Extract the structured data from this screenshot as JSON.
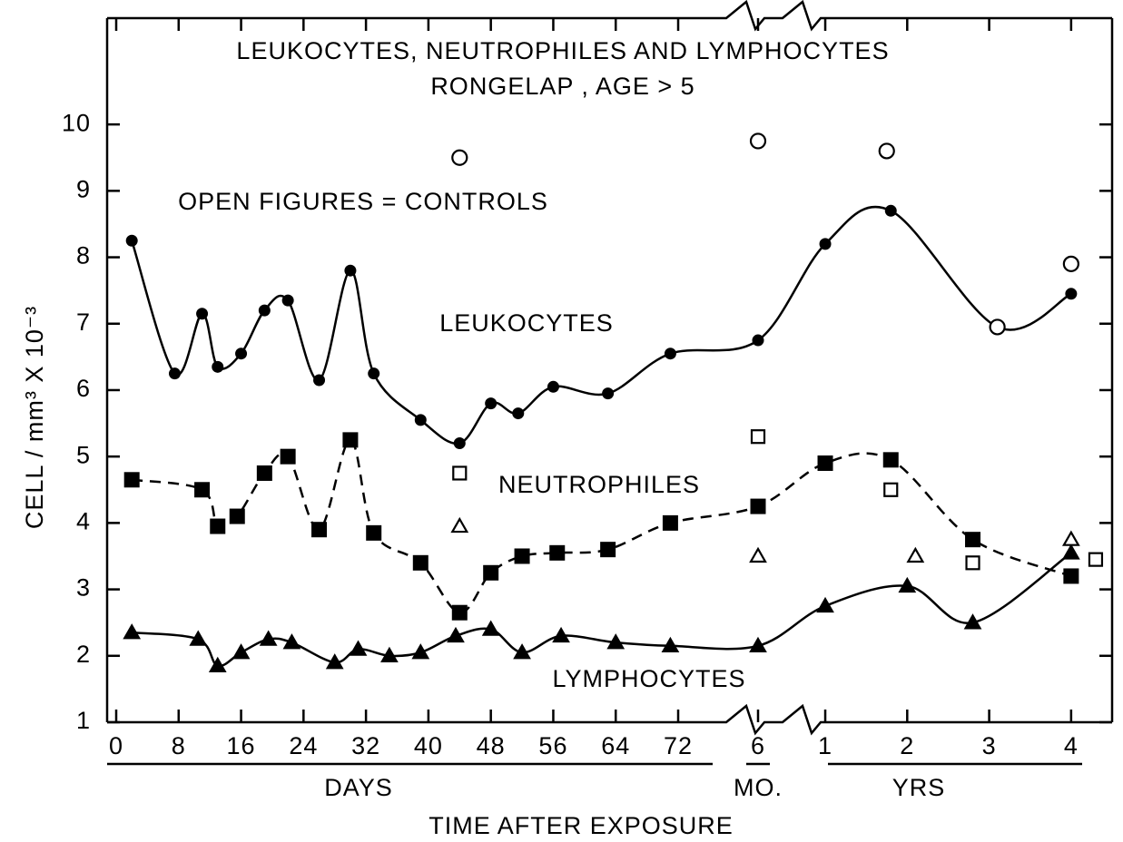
{
  "chart_data": {
    "type": "line",
    "title": "LEUKOCYTES, NEUTROPHILES AND LYMPHOCYTES",
    "subtitle": "RONGELAP ,  AGE > 5",
    "annotations": [
      "OPEN FIGURES = CONTROLS"
    ],
    "ylabel": "CELL / mm³ X 10⁻³",
    "xlabel": "TIME AFTER EXPOSURE",
    "ylim": [
      1,
      11.6
    ],
    "yticks": [
      1,
      2,
      3,
      4,
      5,
      6,
      7,
      8,
      9,
      10
    ],
    "x_segments": [
      {
        "label": "DAYS",
        "xlim": [
          0,
          77
        ],
        "xticks": [
          0,
          8,
          16,
          24,
          32,
          40,
          48,
          56,
          64,
          72
        ]
      },
      {
        "label": "MO.",
        "xlim": [
          5.5,
          6.5
        ],
        "xticks": [
          6
        ]
      },
      {
        "label": "YRS",
        "xlim": [
          0.9,
          4.5
        ],
        "xticks": [
          1,
          2,
          3,
          4
        ]
      }
    ],
    "series": [
      {
        "name": "LEUKOCYTES",
        "color": "#000000",
        "marker": "circle",
        "filled": true,
        "line": "solid",
        "segment": [
          0,
          0,
          0,
          0,
          0,
          0,
          0,
          0,
          0,
          0,
          0,
          0,
          0,
          0,
          0,
          0,
          0,
          1,
          2,
          2,
          2,
          2
        ],
        "x": [
          2,
          7.5,
          11,
          13,
          16,
          19,
          22,
          26,
          30,
          33,
          39,
          44,
          48,
          51.5,
          56,
          63,
          71,
          6,
          1,
          1.8,
          3.1,
          4
        ],
        "values": [
          8.25,
          6.25,
          7.15,
          6.35,
          6.55,
          7.2,
          7.35,
          6.15,
          7.8,
          6.25,
          5.55,
          5.2,
          5.8,
          5.65,
          6.05,
          5.95,
          6.55,
          6.75,
          8.2,
          8.7,
          6.95,
          7.45
        ]
      },
      {
        "name": "NEUTROPHILES",
        "color": "#000000",
        "marker": "square",
        "filled": true,
        "line": "dashed",
        "segment": [
          0,
          0,
          0,
          0,
          0,
          0,
          0,
          0,
          0,
          0,
          0,
          0,
          0,
          0,
          0,
          0,
          1,
          2,
          2,
          2,
          2
        ],
        "x": [
          2,
          11,
          13,
          15.5,
          19,
          22,
          26,
          30,
          33,
          39,
          44,
          48,
          52,
          56.5,
          63,
          71,
          6,
          1,
          1.8,
          2.8,
          4
        ],
        "values": [
          4.65,
          4.5,
          3.95,
          4.1,
          4.75,
          5.0,
          3.9,
          5.25,
          3.85,
          3.4,
          2.65,
          3.25,
          3.5,
          3.55,
          3.6,
          4.0,
          4.25,
          4.9,
          4.95,
          3.75,
          3.2
        ]
      },
      {
        "name": "LYMPHOCYTES",
        "color": "#000000",
        "marker": "triangle",
        "filled": true,
        "line": "solid",
        "segment": [
          0,
          0,
          0,
          0,
          0,
          0,
          0,
          0,
          0,
          0,
          0,
          0,
          0,
          0,
          0,
          0,
          1,
          2,
          2,
          2,
          2
        ],
        "x": [
          2,
          10.5,
          13,
          16,
          19.5,
          22.5,
          28,
          31,
          35,
          39,
          43.5,
          48,
          52,
          57,
          64,
          71,
          6,
          1,
          2,
          2.8,
          4
        ],
        "values": [
          2.35,
          2.25,
          1.85,
          2.05,
          2.25,
          2.2,
          1.9,
          2.1,
          2.0,
          2.05,
          2.3,
          2.4,
          2.05,
          2.3,
          2.2,
          2.15,
          2.15,
          2.75,
          3.05,
          2.5,
          3.55
        ]
      },
      {
        "color": "#000000",
        "marker": "circle",
        "filled": false,
        "line": "none",
        "segment": [
          0,
          1,
          2,
          2,
          2
        ],
        "x": [
          44,
          6,
          1.75,
          3.1,
          4
        ],
        "values": [
          9.5,
          9.75,
          9.6,
          6.95,
          7.9
        ]
      },
      {
        "color": "#000000",
        "marker": "square",
        "filled": false,
        "line": "none",
        "segment": [
          0,
          1,
          2,
          2,
          2
        ],
        "x": [
          44,
          6,
          1.8,
          2.8,
          4.3
        ],
        "values": [
          4.75,
          5.3,
          4.5,
          3.4,
          3.45
        ]
      },
      {
        "color": "#000000",
        "marker": "triangle",
        "filled": false,
        "line": "none",
        "segment": [
          0,
          1,
          2,
          2
        ],
        "x": [
          44,
          6,
          2.1,
          4
        ],
        "values": [
          3.95,
          3.5,
          3.5,
          3.75
        ]
      }
    ]
  }
}
